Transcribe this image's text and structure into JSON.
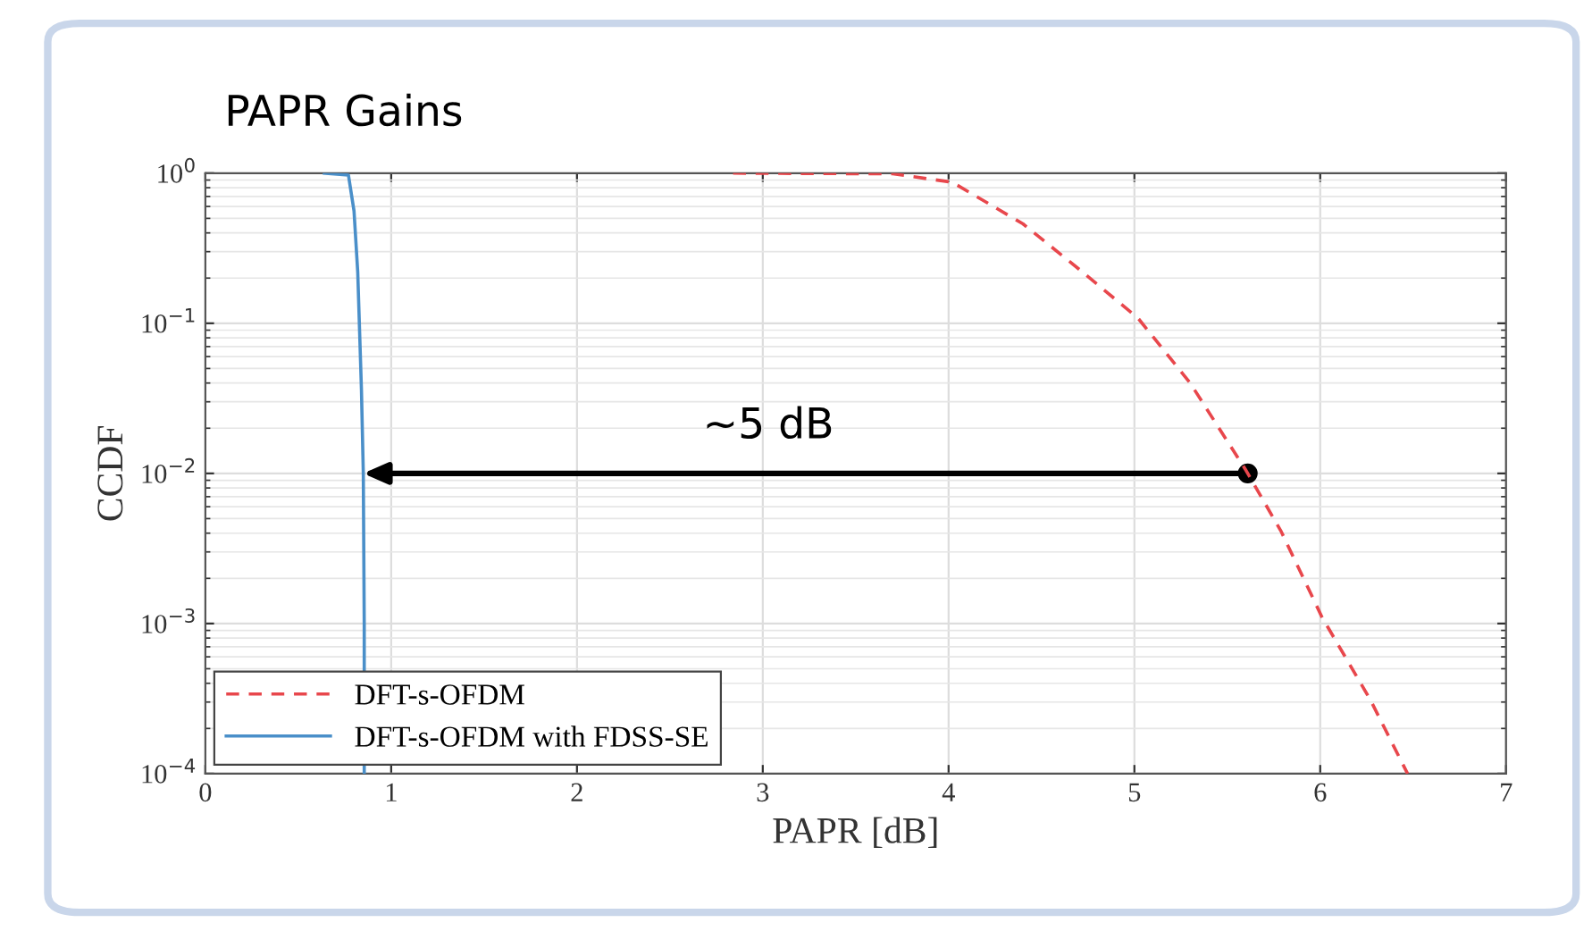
{
  "chart_data": {
    "type": "line",
    "title": "PAPR Gains",
    "xlabel": "PAPR [dB]",
    "ylabel": "CCDF",
    "log": "y",
    "grid": true,
    "legend": "bottom left",
    "xlim": [
      0,
      7
    ],
    "xticks": [
      0,
      1,
      2,
      3,
      4,
      5,
      6,
      7
    ],
    "ylim": [
      0.0001,
      1
    ],
    "yticks": [
      {
        "value": 0.0001,
        "label": "10$^{−4}$"
      },
      {
        "value": 0.001,
        "label": "10$^{−3}$"
      },
      {
        "value": 0.01,
        "label": "10$^{−2}$"
      },
      {
        "value": 0.1,
        "label": "10$^{−1}$"
      },
      {
        "value": 1,
        "label": "10$^{0}$"
      }
    ],
    "series": [
      {
        "name": "DFT-s-OFDM",
        "color": "#e8474c",
        "line_style": "dashed",
        "x": [
          2.84,
          3.7,
          4.02,
          4.4,
          4.72,
          5.02,
          5.3,
          5.6,
          5.79,
          6.01,
          6.27,
          6.47
        ],
        "values": [
          1,
          0.99,
          0.87,
          0.46,
          0.22,
          0.108,
          0.04,
          0.0105,
          0.0041,
          0.0011,
          0.00031,
          0.0001
        ]
      },
      {
        "name": "DFT-s-OFDM with FDSS-SE",
        "color": "#4a8fc9",
        "line_style": "solid",
        "x": [
          0.64,
          0.77,
          0.8,
          0.82,
          0.84,
          0.85,
          0.855,
          0.855
        ],
        "values": [
          1,
          0.97,
          0.56,
          0.22,
          0.036,
          0.01,
          0.001,
          0.0001
        ]
      }
    ],
    "annotations": [
      "~5 dB"
    ]
  }
}
